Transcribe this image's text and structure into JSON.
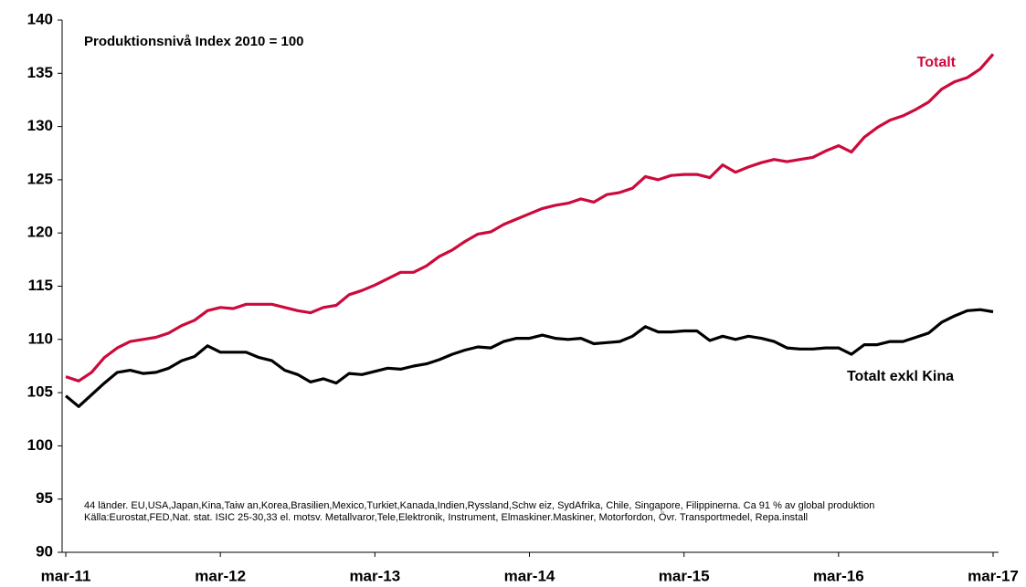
{
  "chart_data": {
    "type": "line",
    "title": "Produktionsnivå Index 2010 = 100",
    "notes": [
      "44 länder. EU,USA,Japan,Kina,Taiw an,Korea,Brasilien,Mexico,Turkiet,Kanada,Indien,Ryssland,Schw eiz, SydAfrika, Chile, Singapore, Filippinerna.  Ca 91 % av global produktion",
      "Källa:Eurostat,FED,Nat.  stat. ISIC  25-30,33 el. motsv. Metallvaror,Tele,Elektronik,  Instrument,  Elmaskiner.Maskiner,  Motorfordon, Övr. Transportmedel, Repa.install"
    ],
    "categories": [
      "mar-11",
      null,
      null,
      null,
      null,
      null,
      null,
      null,
      null,
      null,
      null,
      null,
      "mar-12",
      null,
      null,
      null,
      null,
      null,
      null,
      null,
      null,
      null,
      null,
      null,
      "mar-13",
      null,
      null,
      null,
      null,
      null,
      null,
      null,
      null,
      null,
      null,
      null,
      "mar-14",
      null,
      null,
      null,
      null,
      null,
      null,
      null,
      null,
      null,
      null,
      null,
      "mar-15",
      null,
      null,
      null,
      null,
      null,
      null,
      null,
      null,
      null,
      null,
      null,
      "mar-16",
      null,
      null,
      null,
      null,
      null,
      null,
      null,
      null,
      null,
      null,
      null,
      "mar-17"
    ],
    "series": [
      {
        "name": "Totalt",
        "color": "#cc0a3c",
        "values": [
          106.5,
          106.1,
          106.9,
          108.3,
          109.2,
          109.8,
          110.0,
          110.2,
          110.6,
          111.3,
          111.8,
          112.7,
          113.0,
          112.9,
          113.3,
          113.3,
          113.3,
          113.0,
          112.7,
          112.5,
          113.0,
          113.2,
          114.2,
          114.6,
          115.1,
          115.7,
          116.3,
          116.3,
          116.9,
          117.8,
          118.4,
          119.2,
          119.9,
          120.1,
          120.8,
          121.3,
          121.8,
          122.3,
          122.6,
          122.8,
          123.2,
          122.9,
          123.6,
          123.8,
          124.2,
          125.3,
          125.0,
          125.4,
          125.5,
          125.5,
          125.2,
          126.4,
          125.7,
          126.2,
          126.6,
          126.9,
          126.7,
          126.9,
          127.1,
          127.7,
          128.2,
          127.6,
          129.0,
          129.9,
          130.6,
          131.0,
          131.6,
          132.3,
          133.5,
          134.2,
          134.6,
          135.4,
          136.8
        ]
      },
      {
        "name": "Totalt exkl Kina",
        "color": "#000000",
        "values": [
          104.7,
          103.7,
          104.8,
          105.9,
          106.9,
          107.1,
          106.8,
          106.9,
          107.3,
          108.0,
          108.4,
          109.4,
          108.8,
          108.8,
          108.8,
          108.3,
          108.0,
          107.1,
          106.7,
          106.0,
          106.3,
          105.9,
          106.8,
          106.7,
          107.0,
          107.3,
          107.2,
          107.5,
          107.7,
          108.1,
          108.6,
          109.0,
          109.3,
          109.2,
          109.8,
          110.1,
          110.1,
          110.4,
          110.1,
          110.0,
          110.1,
          109.6,
          109.7,
          109.8,
          110.3,
          111.2,
          110.7,
          110.7,
          110.8,
          110.8,
          109.9,
          110.3,
          110.0,
          110.3,
          110.1,
          109.8,
          109.2,
          109.1,
          109.1,
          109.2,
          109.2,
          108.6,
          109.5,
          109.5,
          109.8,
          109.8,
          110.2,
          110.6,
          111.6,
          112.2,
          112.7,
          112.8,
          112.6
        ]
      }
    ],
    "ylim": [
      90,
      140
    ],
    "yticks": [
      90,
      95,
      100,
      105,
      110,
      115,
      120,
      125,
      130,
      135,
      140
    ],
    "grid": false
  }
}
